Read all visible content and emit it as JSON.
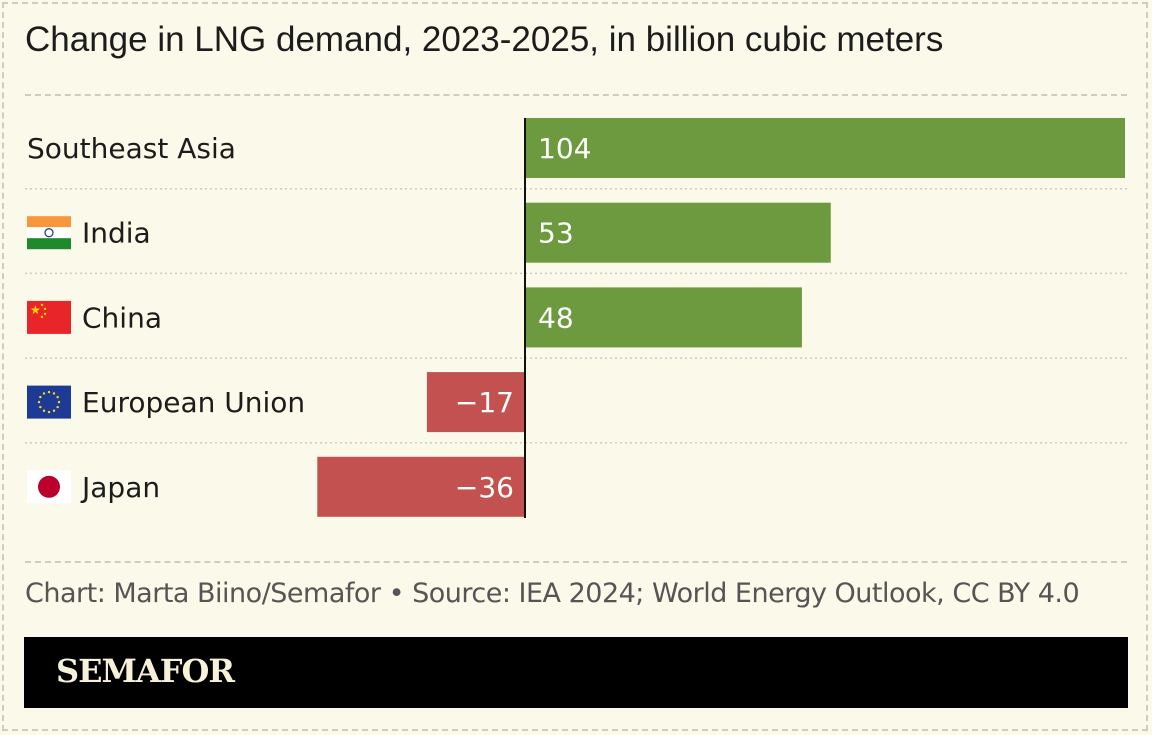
{
  "title": "Change in LNG demand, 2023-2025, in billion cubic meters",
  "credit": "Chart: Marta Biino/Semafor • Source: IEA 2024; World Energy Outlook, CC BY 4.0",
  "brand": "SEMAFOR",
  "colors": {
    "positive": "#6e9a3f",
    "negative": "#c25150",
    "background": "#fbf9e9"
  },
  "chart_data": {
    "type": "bar",
    "orientation": "horizontal",
    "title": "Change in LNG demand, 2023-2025, in billion cubic meters",
    "categories": [
      "Southeast Asia",
      "India",
      "China",
      "European Union",
      "Japan"
    ],
    "flags": [
      "",
      "india-flag",
      "china-flag",
      "eu-flag",
      "japan-flag"
    ],
    "values": [
      104,
      53,
      48,
      -17,
      -36
    ],
    "labels": [
      "104",
      "53",
      "48",
      "−17",
      "−36"
    ],
    "xlim": [
      -36,
      104
    ],
    "grid": false
  }
}
